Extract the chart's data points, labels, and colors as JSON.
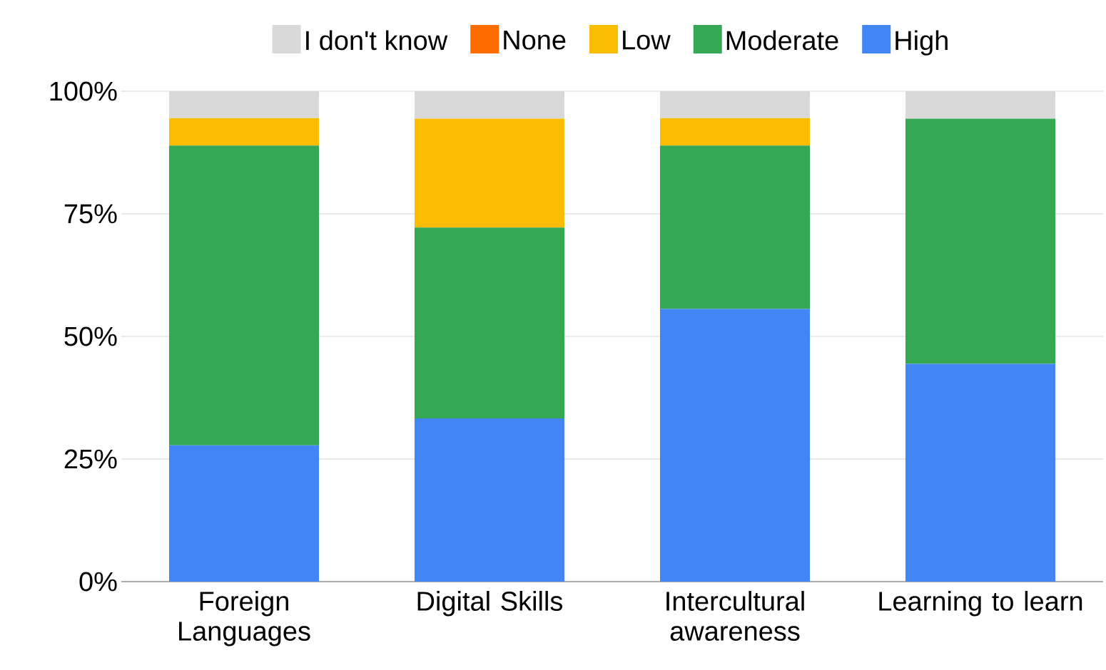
{
  "chart_data": {
    "type": "bar",
    "stacked": true,
    "categories": [
      "Foreign Languages",
      "Digital Skills",
      "Intercultural awareness",
      "Learning to learn"
    ],
    "series": [
      {
        "name": "High",
        "color": "#4285f4",
        "values": [
          27.8,
          33.3,
          55.6,
          44.4
        ]
      },
      {
        "name": "Moderate",
        "color": "#34a853",
        "values": [
          61.1,
          38.9,
          33.3,
          50.0
        ]
      },
      {
        "name": "Low",
        "color": "#fbbc04",
        "values": [
          5.6,
          22.2,
          5.6,
          0
        ]
      },
      {
        "name": "None",
        "color": "#ff6d01",
        "values": [
          0,
          0,
          0,
          0
        ]
      },
      {
        "name": "I don't know",
        "color": "#d9d9d9",
        "values": [
          5.6,
          5.6,
          5.6,
          5.6
        ]
      }
    ],
    "ylim": [
      0,
      100
    ],
    "yticks": [
      {
        "value": 0,
        "label": "0%"
      },
      {
        "value": 25,
        "label": "25%"
      },
      {
        "value": 50,
        "label": "50%"
      },
      {
        "value": 75,
        "label": "75%"
      },
      {
        "value": 100,
        "label": "100%"
      }
    ],
    "grid": "y",
    "legend": "top"
  }
}
